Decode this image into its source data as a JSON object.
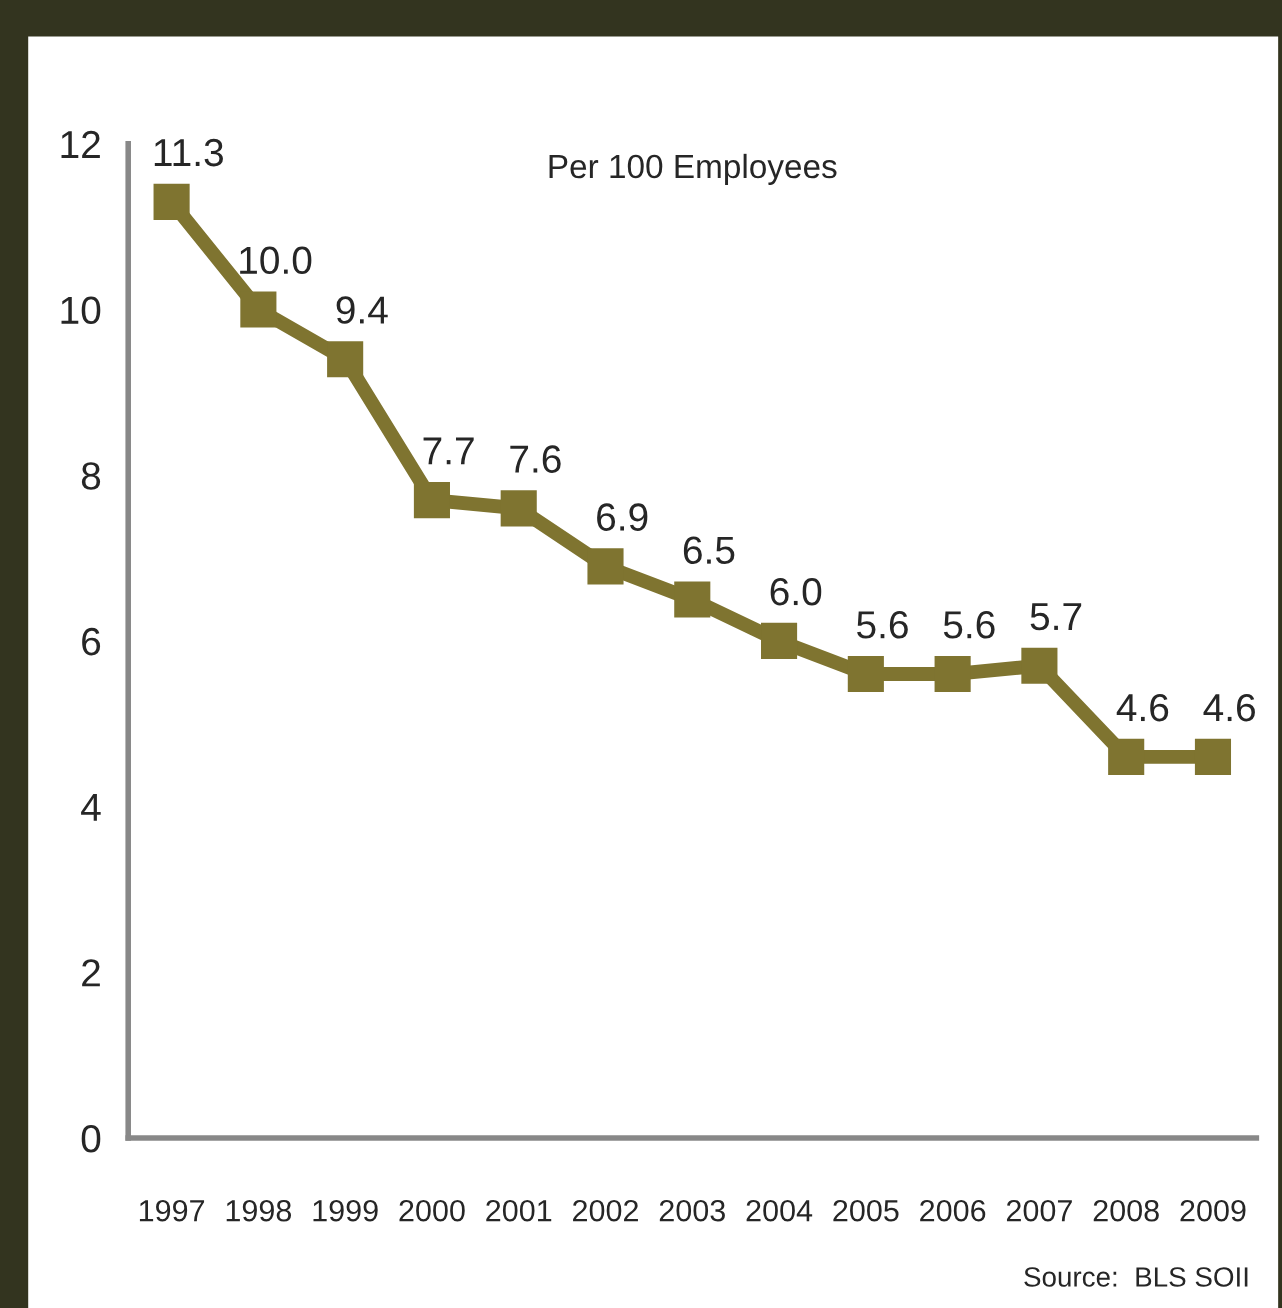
{
  "chart_data": {
    "type": "line",
    "title": "Per 100 Employees",
    "categories": [
      "1997",
      "1998",
      "1999",
      "2000",
      "2001",
      "2002",
      "2003",
      "2004",
      "2005",
      "2006",
      "2007",
      "2008",
      "2009"
    ],
    "series": [
      {
        "color": "#7f7430",
        "values": [
          11.3,
          10.0,
          9.4,
          7.7,
          7.6,
          6.9,
          6.5,
          6.0,
          5.6,
          5.6,
          5.7,
          4.6,
          4.6
        ]
      }
    ],
    "value_labels": [
      "11.3",
      "10.0",
      "9.4",
      "7.7",
      "7.6",
      "6.9",
      "6.5",
      "6.0",
      "5.6",
      "5.6",
      "5.7",
      "4.6",
      "4.6"
    ],
    "ylim": [
      0,
      12
    ],
    "yticks": [
      0,
      2,
      4,
      6,
      8,
      10,
      12
    ],
    "marker": "square",
    "line_style": "solid",
    "grid": false,
    "legend": false,
    "annotations": [
      "Source:  BLS SOII"
    ]
  }
}
